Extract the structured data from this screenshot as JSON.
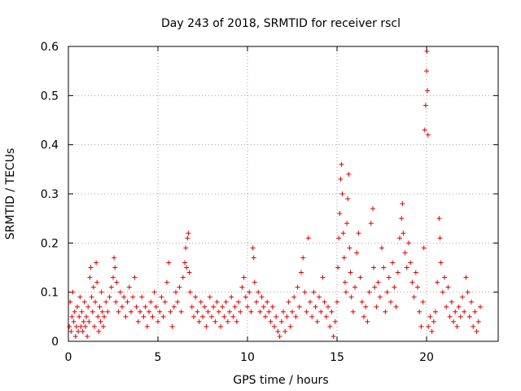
{
  "chart_data": {
    "type": "scatter",
    "title": "Day 243 of 2018, SRMTID for receiver rscl",
    "xlabel": "GPS time / hours",
    "ylabel": "SRMTID / TECUs",
    "xlim": [
      0,
      24
    ],
    "ylim": [
      0,
      0.6
    ],
    "xticks": [
      0,
      5,
      10,
      15,
      20
    ],
    "yticks": [
      0,
      0.1,
      0.2,
      0.3,
      0.4,
      0.5,
      0.6
    ],
    "xtick_labels": [
      "0",
      "5",
      "10",
      "15",
      "20"
    ],
    "ytick_labels": [
      "0",
      "0.1",
      "0.2",
      "0.3",
      "0.4",
      "0.5",
      "0.6"
    ],
    "grid": true,
    "marker": "+",
    "color": "#e00000",
    "series": [
      {
        "name": "SRMTID",
        "points": [
          [
            0.05,
            0.03
          ],
          [
            0.1,
            0.08
          ],
          [
            0.15,
            0.02
          ],
          [
            0.2,
            0.05
          ],
          [
            0.25,
            0.1
          ],
          [
            0.3,
            0.04
          ],
          [
            0.35,
            0.06
          ],
          [
            0.4,
            0.01
          ],
          [
            0.45,
            0.03
          ],
          [
            0.5,
            0.07
          ],
          [
            0.55,
            0.02
          ],
          [
            0.6,
            0.05
          ],
          [
            0.65,
            0.09
          ],
          [
            0.7,
            0.03
          ],
          [
            0.75,
            0.06
          ],
          [
            0.8,
            0.02
          ],
          [
            0.85,
            0.04
          ],
          [
            0.9,
            0.08
          ],
          [
            0.95,
            0.03
          ],
          [
            1.0,
            0.05
          ],
          [
            1.05,
            0.01
          ],
          [
            1.1,
            0.07
          ],
          [
            1.15,
            0.04
          ],
          [
            1.2,
            0.13
          ],
          [
            1.25,
            0.15
          ],
          [
            1.3,
            0.09
          ],
          [
            1.35,
            0.06
          ],
          [
            1.4,
            0.11
          ],
          [
            1.45,
            0.03
          ],
          [
            1.5,
            0.08
          ],
          [
            1.55,
            0.16
          ],
          [
            1.6,
            0.12
          ],
          [
            1.65,
            0.05
          ],
          [
            1.7,
            0.02
          ],
          [
            1.75,
            0.07
          ],
          [
            1.8,
            0.04
          ],
          [
            1.85,
            0.1
          ],
          [
            1.9,
            0.06
          ],
          [
            1.95,
            0.03
          ],
          [
            2.0,
            0.05
          ],
          [
            2.1,
            0.08
          ],
          [
            2.2,
            0.06
          ],
          [
            2.3,
            0.09
          ],
          [
            2.4,
            0.11
          ],
          [
            2.5,
            0.13
          ],
          [
            2.55,
            0.17
          ],
          [
            2.6,
            0.15
          ],
          [
            2.65,
            0.08
          ],
          [
            2.7,
            0.12
          ],
          [
            2.8,
            0.06
          ],
          [
            2.9,
            0.1
          ],
          [
            3.0,
            0.07
          ],
          [
            3.1,
            0.09
          ],
          [
            3.2,
            0.05
          ],
          [
            3.3,
            0.08
          ],
          [
            3.4,
            0.11
          ],
          [
            3.5,
            0.06
          ],
          [
            3.6,
            0.09
          ],
          [
            3.7,
            0.13
          ],
          [
            3.8,
            0.07
          ],
          [
            3.9,
            0.04
          ],
          [
            4.0,
            0.06
          ],
          [
            4.1,
            0.09
          ],
          [
            4.2,
            0.05
          ],
          [
            4.3,
            0.07
          ],
          [
            4.4,
            0.03
          ],
          [
            4.5,
            0.06
          ],
          [
            4.6,
            0.08
          ],
          [
            4.7,
            0.05
          ],
          [
            4.8,
            0.1
          ],
          [
            4.9,
            0.07
          ],
          [
            5.0,
            0.04
          ],
          [
            5.1,
            0.06
          ],
          [
            5.2,
            0.09
          ],
          [
            5.3,
            0.05
          ],
          [
            5.4,
            0.08
          ],
          [
            5.5,
            0.12
          ],
          [
            5.6,
            0.16
          ],
          [
            5.7,
            0.06
          ],
          [
            5.8,
            0.03
          ],
          [
            5.9,
            0.07
          ],
          [
            6.0,
            0.1
          ],
          [
            6.1,
            0.08
          ],
          [
            6.2,
            0.11
          ],
          [
            6.3,
            0.06
          ],
          [
            6.4,
            0.13
          ],
          [
            6.5,
            0.16
          ],
          [
            6.55,
            0.19
          ],
          [
            6.6,
            0.15
          ],
          [
            6.65,
            0.21
          ],
          [
            6.7,
            0.22
          ],
          [
            6.75,
            0.14
          ],
          [
            6.8,
            0.1
          ],
          [
            6.9,
            0.07
          ],
          [
            7.0,
            0.05
          ],
          [
            7.1,
            0.09
          ],
          [
            7.2,
            0.06
          ],
          [
            7.3,
            0.04
          ],
          [
            7.4,
            0.08
          ],
          [
            7.5,
            0.05
          ],
          [
            7.6,
            0.07
          ],
          [
            7.7,
            0.03
          ],
          [
            7.8,
            0.06
          ],
          [
            7.9,
            0.09
          ],
          [
            8.0,
            0.05
          ],
          [
            8.1,
            0.07
          ],
          [
            8.2,
            0.04
          ],
          [
            8.3,
            0.08
          ],
          [
            8.4,
            0.06
          ],
          [
            8.5,
            0.03
          ],
          [
            8.6,
            0.07
          ],
          [
            8.7,
            0.05
          ],
          [
            8.8,
            0.08
          ],
          [
            8.9,
            0.04
          ],
          [
            9.0,
            0.06
          ],
          [
            9.1,
            0.09
          ],
          [
            9.2,
            0.05
          ],
          [
            9.3,
            0.07
          ],
          [
            9.4,
            0.04
          ],
          [
            9.5,
            0.08
          ],
          [
            9.6,
            0.06
          ],
          [
            9.7,
            0.11
          ],
          [
            9.8,
            0.13
          ],
          [
            9.9,
            0.09
          ],
          [
            10.0,
            0.07
          ],
          [
            10.1,
            0.1
          ],
          [
            10.2,
            0.06
          ],
          [
            10.3,
            0.19
          ],
          [
            10.35,
            0.17
          ],
          [
            10.4,
            0.12
          ],
          [
            10.5,
            0.08
          ],
          [
            10.6,
            0.1
          ],
          [
            10.7,
            0.06
          ],
          [
            10.8,
            0.09
          ],
          [
            10.9,
            0.07
          ],
          [
            11.0,
            0.05
          ],
          [
            11.1,
            0.08
          ],
          [
            11.2,
            0.06
          ],
          [
            11.3,
            0.04
          ],
          [
            11.4,
            0.07
          ],
          [
            11.5,
            0.03
          ],
          [
            11.6,
            0.05
          ],
          [
            11.7,
            0.02
          ],
          [
            11.8,
            0.01
          ],
          [
            11.9,
            0.04
          ],
          [
            12.0,
            0.06
          ],
          [
            12.1,
            0.02
          ],
          [
            12.2,
            0.05
          ],
          [
            12.3,
            0.08
          ],
          [
            12.4,
            0.03
          ],
          [
            12.5,
            0.06
          ],
          [
            12.6,
            0.09
          ],
          [
            12.7,
            0.05
          ],
          [
            12.8,
            0.11
          ],
          [
            12.9,
            0.07
          ],
          [
            13.0,
            0.14
          ],
          [
            13.1,
            0.17
          ],
          [
            13.2,
            0.1
          ],
          [
            13.3,
            0.06
          ],
          [
            13.4,
            0.21
          ],
          [
            13.5,
            0.08
          ],
          [
            13.6,
            0.05
          ],
          [
            13.7,
            0.1
          ],
          [
            13.8,
            0.07
          ],
          [
            13.9,
            0.04
          ],
          [
            14.0,
            0.09
          ],
          [
            14.1,
            0.06
          ],
          [
            14.2,
            0.13
          ],
          [
            14.3,
            0.08
          ],
          [
            14.4,
            0.05
          ],
          [
            14.5,
            0.07
          ],
          [
            14.6,
            0.03
          ],
          [
            14.7,
            0.06
          ],
          [
            14.8,
            0.01
          ],
          [
            14.9,
            0.04
          ],
          [
            15.0,
            0.08
          ],
          [
            15.05,
            0.15
          ],
          [
            15.1,
            0.21
          ],
          [
            15.15,
            0.26
          ],
          [
            15.2,
            0.33
          ],
          [
            15.25,
            0.36
          ],
          [
            15.3,
            0.3
          ],
          [
            15.35,
            0.22
          ],
          [
            15.4,
            0.17
          ],
          [
            15.45,
            0.12
          ],
          [
            15.5,
            0.1
          ],
          [
            15.55,
            0.24
          ],
          [
            15.6,
            0.29
          ],
          [
            15.65,
            0.34
          ],
          [
            15.7,
            0.19
          ],
          [
            15.75,
            0.14
          ],
          [
            15.8,
            0.09
          ],
          [
            15.9,
            0.06
          ],
          [
            16.0,
            0.11
          ],
          [
            16.1,
            0.18
          ],
          [
            16.2,
            0.22
          ],
          [
            16.3,
            0.13
          ],
          [
            16.4,
            0.08
          ],
          [
            16.5,
            0.05
          ],
          [
            16.6,
            0.07
          ],
          [
            16.7,
            0.04
          ],
          [
            16.8,
            0.1
          ],
          [
            16.9,
            0.24
          ],
          [
            17.0,
            0.27
          ],
          [
            17.05,
            0.15
          ],
          [
            17.1,
            0.11
          ],
          [
            17.2,
            0.07
          ],
          [
            17.3,
            0.12
          ],
          [
            17.4,
            0.09
          ],
          [
            17.5,
            0.19
          ],
          [
            17.6,
            0.15
          ],
          [
            17.7,
            0.06
          ],
          [
            17.8,
            0.1
          ],
          [
            17.9,
            0.13
          ],
          [
            18.0,
            0.08
          ],
          [
            18.1,
            0.16
          ],
          [
            18.2,
            0.11
          ],
          [
            18.3,
            0.07
          ],
          [
            18.4,
            0.14
          ],
          [
            18.5,
            0.21
          ],
          [
            18.6,
            0.25
          ],
          [
            18.65,
            0.28
          ],
          [
            18.7,
            0.22
          ],
          [
            18.8,
            0.18
          ],
          [
            18.9,
            0.15
          ],
          [
            19.0,
            0.2
          ],
          [
            19.1,
            0.16
          ],
          [
            19.2,
            0.12
          ],
          [
            19.3,
            0.09
          ],
          [
            19.4,
            0.14
          ],
          [
            19.5,
            0.11
          ],
          [
            19.6,
            0.06
          ],
          [
            19.7,
            0.03
          ],
          [
            19.8,
            0.08
          ],
          [
            19.85,
            0.19
          ],
          [
            19.9,
            0.43
          ],
          [
            19.95,
            0.48
          ],
          [
            20.0,
            0.55
          ],
          [
            20.02,
            0.59
          ],
          [
            20.05,
            0.51
          ],
          [
            20.08,
            0.42
          ],
          [
            20.1,
            0.03
          ],
          [
            20.2,
            0.05
          ],
          [
            20.3,
            0.02
          ],
          [
            20.4,
            0.04
          ],
          [
            20.5,
            0.06
          ],
          [
            20.6,
            0.12
          ],
          [
            20.7,
            0.25
          ],
          [
            20.75,
            0.21
          ],
          [
            20.8,
            0.16
          ],
          [
            20.9,
            0.1
          ],
          [
            21.0,
            0.13
          ],
          [
            21.1,
            0.07
          ],
          [
            21.2,
            0.11
          ],
          [
            21.3,
            0.05
          ],
          [
            21.4,
            0.08
          ],
          [
            21.5,
            0.04
          ],
          [
            21.6,
            0.06
          ],
          [
            21.7,
            0.03
          ],
          [
            21.8,
            0.07
          ],
          [
            21.9,
            0.05
          ],
          [
            22.0,
            0.09
          ],
          [
            22.1,
            0.06
          ],
          [
            22.2,
            0.13
          ],
          [
            22.3,
            0.1
          ],
          [
            22.4,
            0.05
          ],
          [
            22.5,
            0.08
          ],
          [
            22.6,
            0.03
          ],
          [
            22.7,
            0.06
          ],
          [
            22.8,
            0.02
          ],
          [
            22.9,
            0.04
          ],
          [
            23.0,
            0.07
          ]
        ]
      }
    ]
  }
}
